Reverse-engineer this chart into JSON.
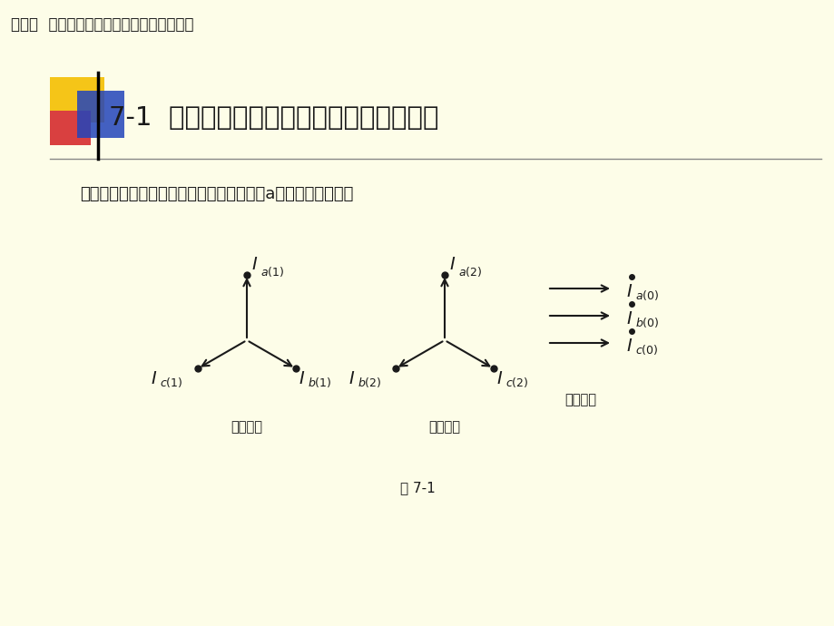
{
  "bg_color": "#FDFDE8",
  "title_text": "第七章  电力系统各元件的序阻抗和等值电路",
  "section_title": "7-1  对称分量法在不对称短路计算中的应用",
  "description": "三相的三序分量各自对称，如下图所示（以a相位参考相位）：",
  "fig_label": "图 7-1",
  "pos_seq_label": "正序分量",
  "neg_seq_label": "负序分量",
  "zero_seq_label": "零序分量",
  "arrow_color": "#1a1a1a",
  "text_color": "#1a1a1a",
  "header_line_color": "#888888",
  "deco_yellow": "#F5C518",
  "deco_red": "#D94040",
  "deco_blue": "#2244BB"
}
